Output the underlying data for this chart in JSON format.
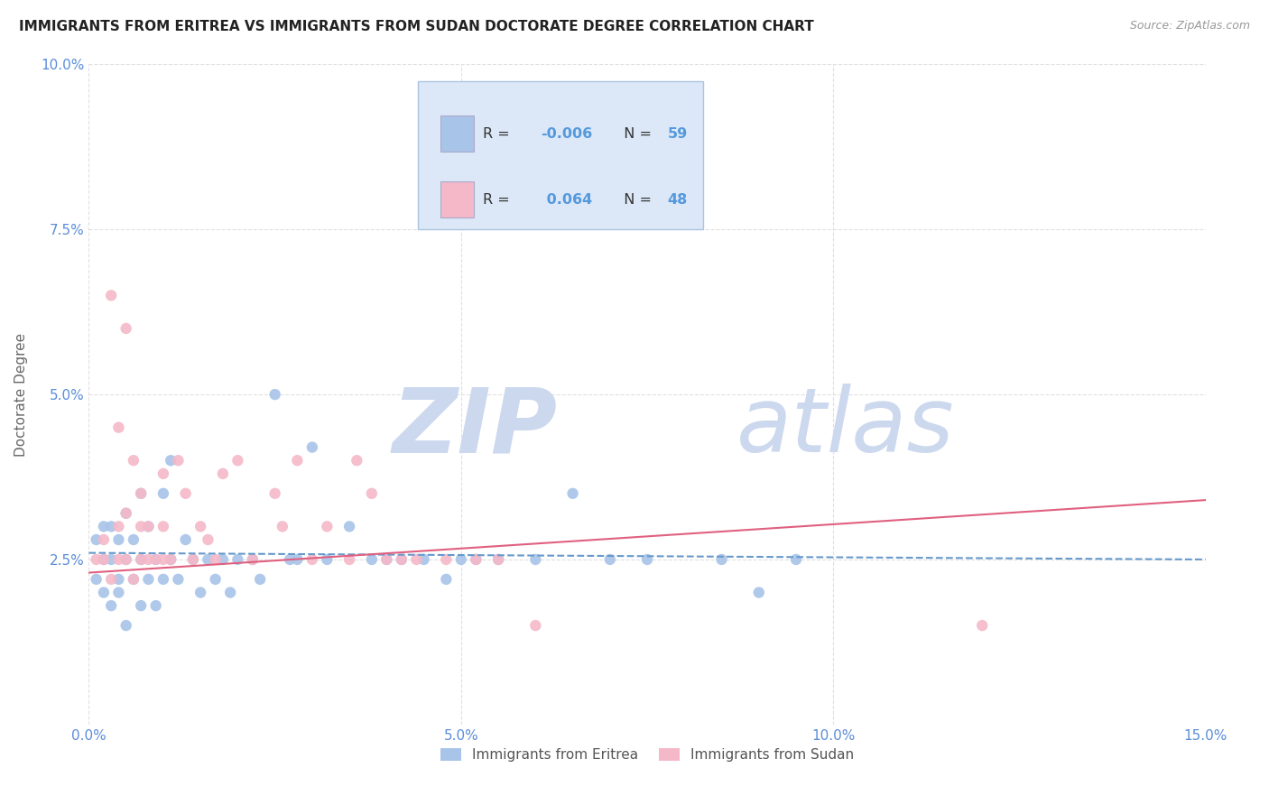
{
  "title": "IMMIGRANTS FROM ERITREA VS IMMIGRANTS FROM SUDAN DOCTORATE DEGREE CORRELATION CHART",
  "source": "Source: ZipAtlas.com",
  "ylabel": "Doctorate Degree",
  "xlim": [
    0.0,
    0.15
  ],
  "ylim": [
    0.0,
    0.1
  ],
  "xticks": [
    0.0,
    0.05,
    0.1,
    0.15
  ],
  "xticklabels": [
    "0.0%",
    "5.0%",
    "10.0%",
    "15.0%"
  ],
  "yticks": [
    0.0,
    0.025,
    0.05,
    0.075,
    0.1
  ],
  "yticklabels": [
    "",
    "2.5%",
    "5.0%",
    "7.5%",
    "10.0%"
  ],
  "series": [
    {
      "label": "Immigrants from Eritrea",
      "R": -0.006,
      "N": 59,
      "color": "#a8c4e8",
      "trend_color": "#6699cc",
      "trend_style": "dashed",
      "x": [
        0.001,
        0.001,
        0.002,
        0.002,
        0.002,
        0.003,
        0.003,
        0.003,
        0.004,
        0.004,
        0.004,
        0.005,
        0.005,
        0.005,
        0.006,
        0.006,
        0.007,
        0.007,
        0.007,
        0.008,
        0.008,
        0.009,
        0.009,
        0.01,
        0.01,
        0.011,
        0.011,
        0.012,
        0.013,
        0.014,
        0.015,
        0.016,
        0.017,
        0.018,
        0.019,
        0.02,
        0.022,
        0.023,
        0.025,
        0.027,
        0.028,
        0.03,
        0.032,
        0.035,
        0.038,
        0.04,
        0.042,
        0.045,
        0.048,
        0.05,
        0.052,
        0.055,
        0.06,
        0.065,
        0.07,
        0.075,
        0.085,
        0.09,
        0.095
      ],
      "y": [
        0.022,
        0.028,
        0.02,
        0.025,
        0.03,
        0.018,
        0.025,
        0.03,
        0.022,
        0.028,
        0.02,
        0.015,
        0.025,
        0.032,
        0.022,
        0.028,
        0.018,
        0.025,
        0.035,
        0.022,
        0.03,
        0.018,
        0.025,
        0.022,
        0.035,
        0.025,
        0.04,
        0.022,
        0.028,
        0.025,
        0.02,
        0.025,
        0.022,
        0.025,
        0.02,
        0.025,
        0.025,
        0.022,
        0.05,
        0.025,
        0.025,
        0.042,
        0.025,
        0.03,
        0.025,
        0.025,
        0.025,
        0.025,
        0.022,
        0.025,
        0.025,
        0.025,
        0.025,
        0.035,
        0.025,
        0.025,
        0.025,
        0.02,
        0.025
      ]
    },
    {
      "label": "Immigrants from Sudan",
      "R": 0.064,
      "N": 48,
      "color": "#f4b8c8",
      "trend_color": "#e06080",
      "trend_style": "solid",
      "x": [
        0.001,
        0.002,
        0.002,
        0.003,
        0.004,
        0.004,
        0.005,
        0.005,
        0.006,
        0.007,
        0.007,
        0.008,
        0.009,
        0.01,
        0.01,
        0.011,
        0.012,
        0.013,
        0.014,
        0.015,
        0.016,
        0.017,
        0.018,
        0.02,
        0.022,
        0.025,
        0.026,
        0.028,
        0.03,
        0.032,
        0.035,
        0.036,
        0.038,
        0.04,
        0.042,
        0.044,
        0.048,
        0.052,
        0.055,
        0.06,
        0.003,
        0.004,
        0.005,
        0.006,
        0.007,
        0.12,
        0.008,
        0.01
      ],
      "y": [
        0.025,
        0.025,
        0.028,
        0.022,
        0.025,
        0.03,
        0.025,
        0.032,
        0.022,
        0.025,
        0.03,
        0.025,
        0.025,
        0.038,
        0.03,
        0.025,
        0.04,
        0.035,
        0.025,
        0.03,
        0.028,
        0.025,
        0.038,
        0.04,
        0.025,
        0.035,
        0.03,
        0.04,
        0.025,
        0.03,
        0.025,
        0.04,
        0.035,
        0.025,
        0.025,
        0.025,
        0.025,
        0.025,
        0.025,
        0.015,
        0.065,
        0.045,
        0.06,
        0.04,
        0.035,
        0.015,
        0.03,
        0.025
      ]
    }
  ],
  "legend_box_color": "#dce8f8",
  "legend_box_edge": "#aac4e0",
  "watermark_zip": "ZIP",
  "watermark_atlas": "atlas",
  "watermark_color": "#ccd8ee",
  "background_color": "#ffffff",
  "grid_color": "#e0e0e0",
  "title_fontsize": 11,
  "tick_label_color": "#5b8dd9",
  "r_value_color": "#5599dd",
  "n_value_color": "#5599dd"
}
